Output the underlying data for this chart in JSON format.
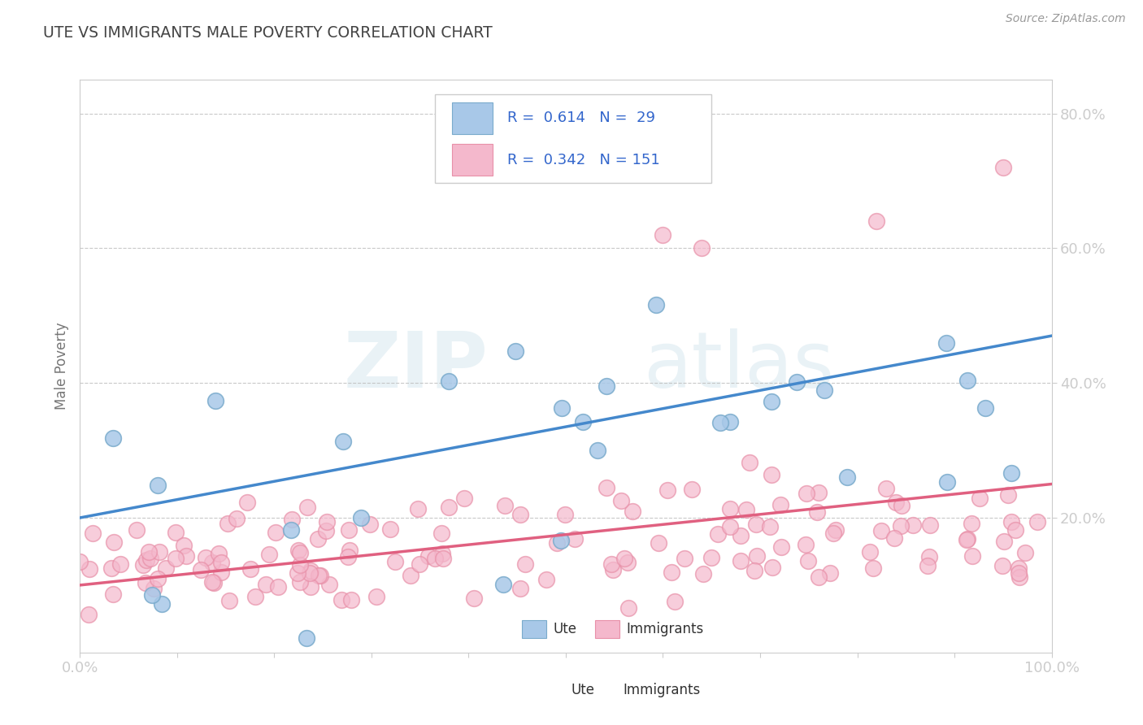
{
  "title": "UTE VS IMMIGRANTS MALE POVERTY CORRELATION CHART",
  "source_text": "Source: ZipAtlas.com",
  "ylabel": "Male Poverty",
  "watermark_zip": "ZIP",
  "watermark_atlas": "atlas",
  "ute_color": "#a8c8e8",
  "ute_edge_color": "#7aabcc",
  "immigrants_color": "#f4b8cc",
  "immigrants_edge_color": "#e890a8",
  "ute_line_color": "#4488cc",
  "immigrants_line_color": "#e06080",
  "background_color": "#ffffff",
  "grid_color": "#bbbbbb",
  "title_color": "#444444",
  "axis_tick_color": "#4488bb",
  "ylabel_color": "#777777",
  "source_color": "#999999",
  "legend_text_color": "#3366cc",
  "legend_border_color": "#cccccc",
  "xlim": [
    0,
    1
  ],
  "ylim": [
    0,
    0.85
  ],
  "ute_R": 0.614,
  "ute_N": 29,
  "immigrants_R": 0.342,
  "immigrants_N": 151,
  "ute_line_x0": 0.0,
  "ute_line_y0": 0.2,
  "ute_line_x1": 1.0,
  "ute_line_y1": 0.47,
  "imm_line_x0": 0.0,
  "imm_line_y0": 0.1,
  "imm_line_x1": 1.0,
  "imm_line_y1": 0.25
}
